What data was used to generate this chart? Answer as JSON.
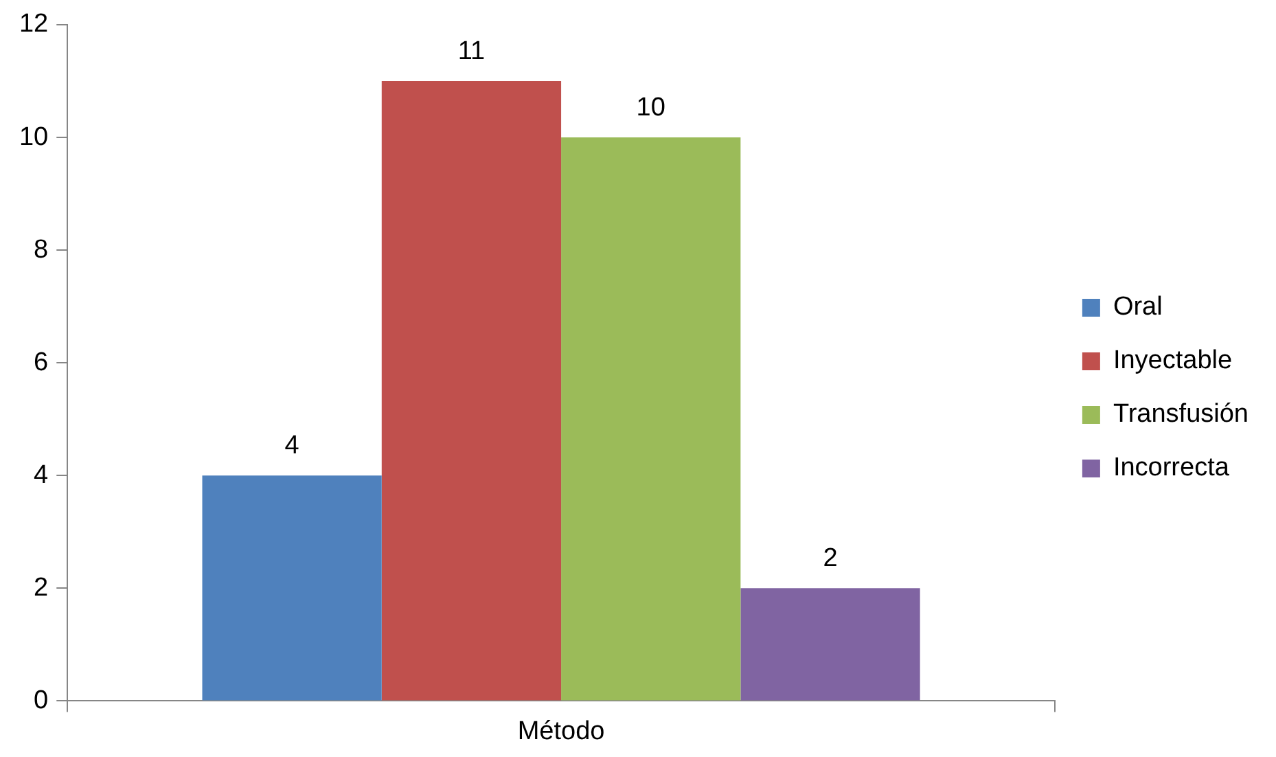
{
  "chart_data": {
    "type": "bar",
    "categories": [
      "Método"
    ],
    "series": [
      {
        "name": "Oral",
        "color": "#4f81bd",
        "values": [
          4
        ]
      },
      {
        "name": "Inyectable",
        "color": "#c0504d",
        "values": [
          11
        ]
      },
      {
        "name": "Transfusión",
        "color": "#9bbb59",
        "values": [
          10
        ]
      },
      {
        "name": "Incorrecta",
        "color": "#8064a2",
        "values": [
          2
        ]
      }
    ],
    "ylim": [
      0,
      12
    ],
    "yticks": [
      0,
      2,
      4,
      6,
      8,
      10,
      12
    ],
    "grid": false,
    "legend": "right",
    "data_labels": true
  }
}
